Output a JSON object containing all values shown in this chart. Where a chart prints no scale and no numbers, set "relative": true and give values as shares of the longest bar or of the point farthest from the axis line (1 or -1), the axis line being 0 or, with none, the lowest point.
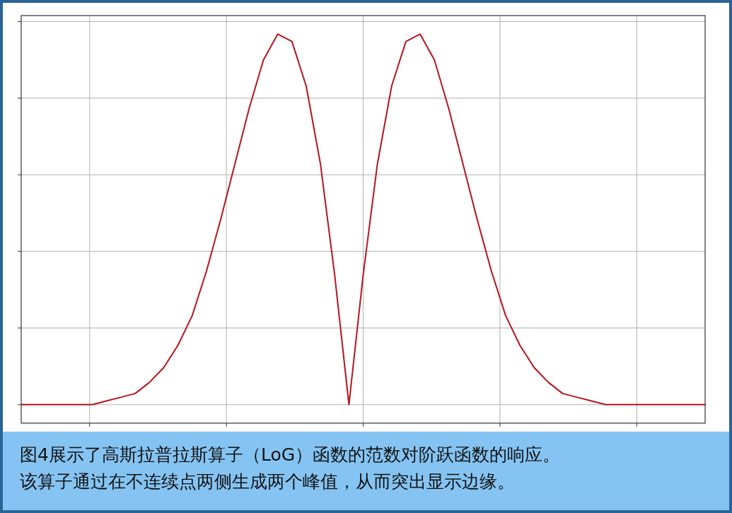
{
  "chart_data": {
    "type": "line",
    "relative": true,
    "grid": true,
    "categories": [
      null,
      null,
      null,
      null,
      null,
      null,
      null,
      null,
      null,
      null,
      null,
      null,
      null,
      null,
      null,
      null,
      null,
      null,
      null,
      null,
      null,
      null,
      null,
      null,
      null,
      null,
      null,
      null,
      null,
      null,
      null,
      null,
      null,
      null,
      null,
      null,
      null,
      null,
      null,
      null,
      null,
      null,
      null,
      null,
      null,
      null,
      null,
      null,
      null
    ],
    "series": [
      {
        "color": "#b8141c",
        "values": [
          0,
          0,
          0,
          0,
          0,
          0,
          0.01,
          0.02,
          0.03,
          0.06,
          0.1,
          0.16,
          0.24,
          0.36,
          0.5,
          0.65,
          0.8,
          0.93,
          1,
          0.98,
          0.86,
          0.65,
          0.35,
          0,
          0.35,
          0.65,
          0.86,
          0.98,
          1,
          0.93,
          0.8,
          0.65,
          0.5,
          0.36,
          0.24,
          0.16,
          0.1,
          0.06,
          0.03,
          0.02,
          0.01,
          0,
          0,
          0,
          0,
          0,
          0,
          0,
          0
        ]
      }
    ],
    "annotations": [
      "图4展示了高斯拉普拉斯算子（LoG）函数的范数对阶跃函数的响应。",
      "该算子通过在不连续点两侧生成两个峰值，从而突出显示边缘。"
    ]
  }
}
